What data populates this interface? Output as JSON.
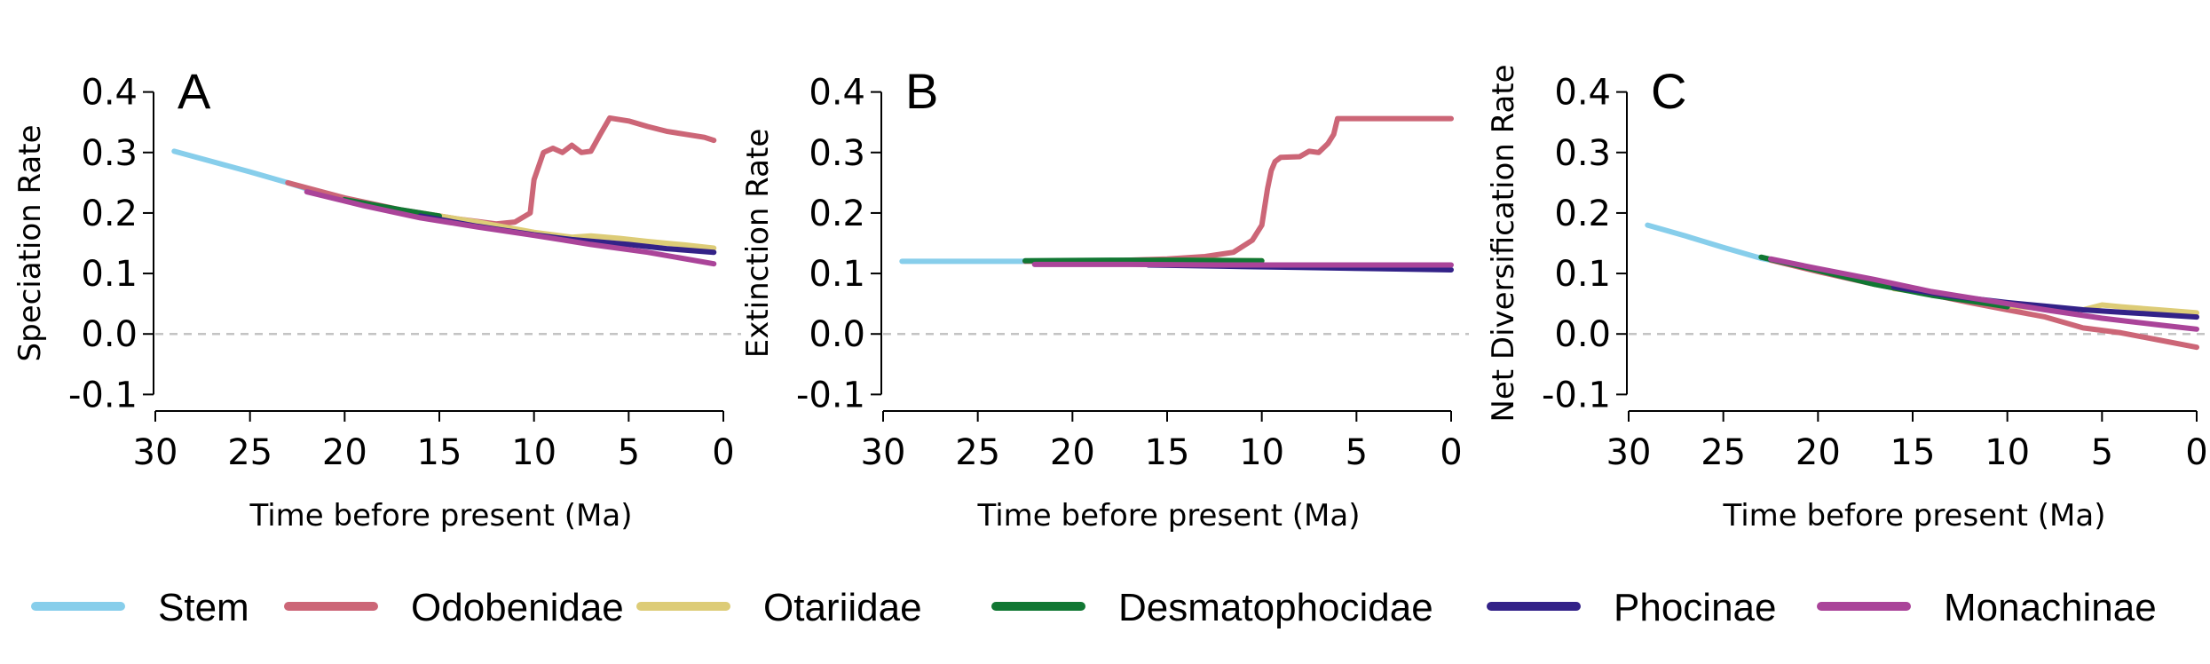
{
  "chart_data": [
    {
      "type": "line",
      "panel_label": "A",
      "ylabel": "Speciation Rate",
      "xlabel": "Time before present (Ma)",
      "xlim": [
        30,
        0
      ],
      "ylim": [
        -0.12,
        0.42
      ],
      "xticks": [
        30,
        25,
        20,
        15,
        10,
        5,
        0
      ],
      "yticks": [
        "0.4",
        "0.3",
        "0.2",
        "0.1",
        "0.0",
        "-0.1"
      ],
      "reference_line": 0,
      "series": [
        {
          "name": "Stem",
          "points": [
            [
              29,
              0.302
            ],
            [
              27,
              0.285
            ],
            [
              25,
              0.268
            ],
            [
              23,
              0.25
            ],
            [
              21.5,
              0.235
            ],
            [
              20,
              0.222
            ]
          ]
        },
        {
          "name": "Odobenidae",
          "points": [
            [
              23,
              0.25
            ],
            [
              20,
              0.225
            ],
            [
              17,
              0.205
            ],
            [
              14,
              0.19
            ],
            [
              12,
              0.182
            ],
            [
              11,
              0.185
            ],
            [
              10.2,
              0.2
            ],
            [
              10,
              0.255
            ],
            [
              9.5,
              0.3
            ],
            [
              9,
              0.307
            ],
            [
              8.5,
              0.3
            ],
            [
              8,
              0.312
            ],
            [
              7.5,
              0.3
            ],
            [
              7,
              0.302
            ],
            [
              6.5,
              0.33
            ],
            [
              6,
              0.357
            ],
            [
              5,
              0.352
            ],
            [
              4,
              0.343
            ],
            [
              3,
              0.335
            ],
            [
              2,
              0.33
            ],
            [
              1,
              0.325
            ],
            [
              0.5,
              0.32
            ]
          ]
        },
        {
          "name": "Otariidae",
          "points": [
            [
              16,
              0.2
            ],
            [
              13,
              0.185
            ],
            [
              10,
              0.168
            ],
            [
              8,
              0.16
            ],
            [
              7,
              0.162
            ],
            [
              5.5,
              0.158
            ],
            [
              4,
              0.153
            ],
            [
              2,
              0.147
            ],
            [
              0.5,
              0.142
            ]
          ]
        },
        {
          "name": "Desmatophocidae",
          "points": [
            [
              20,
              0.222
            ],
            [
              17,
              0.205
            ],
            [
              15,
              0.195
            ]
          ]
        },
        {
          "name": "Phocinae",
          "points": [
            [
              16,
              0.195
            ],
            [
              13,
              0.178
            ],
            [
              10,
              0.164
            ],
            [
              8,
              0.156
            ],
            [
              5,
              0.148
            ],
            [
              3,
              0.141
            ],
            [
              0.5,
              0.135
            ]
          ]
        },
        {
          "name": "Monachinae",
          "points": [
            [
              22,
              0.235
            ],
            [
              19,
              0.212
            ],
            [
              16,
              0.192
            ],
            [
              13,
              0.177
            ],
            [
              10,
              0.163
            ],
            [
              7,
              0.148
            ],
            [
              4,
              0.135
            ],
            [
              0.5,
              0.116
            ]
          ]
        }
      ]
    },
    {
      "type": "line",
      "panel_label": "B",
      "ylabel": "Extinction Rate",
      "xlabel": "Time before present (Ma)",
      "xlim": [
        30,
        0
      ],
      "ylim": [
        -0.12,
        0.42
      ],
      "xticks": [
        30,
        25,
        20,
        15,
        10,
        5,
        0
      ],
      "yticks": [
        "0.4",
        "0.3",
        "0.2",
        "0.1",
        "0.0",
        "-0.1"
      ],
      "reference_line": 0,
      "series": [
        {
          "name": "Stem",
          "points": [
            [
              29,
              0.12
            ],
            [
              25,
              0.12
            ],
            [
              22.5,
              0.12
            ]
          ]
        },
        {
          "name": "Odobenidae",
          "points": [
            [
              22.5,
              0.12
            ],
            [
              18,
              0.121
            ],
            [
              15,
              0.124
            ],
            [
              13,
              0.128
            ],
            [
              11.5,
              0.135
            ],
            [
              10.5,
              0.155
            ],
            [
              10,
              0.18
            ],
            [
              9.7,
              0.24
            ],
            [
              9.5,
              0.27
            ],
            [
              9.3,
              0.285
            ],
            [
              9,
              0.292
            ],
            [
              8,
              0.293
            ],
            [
              7.5,
              0.302
            ],
            [
              7,
              0.3
            ],
            [
              6.5,
              0.315
            ],
            [
              6.2,
              0.33
            ],
            [
              6,
              0.356
            ],
            [
              4,
              0.356
            ],
            [
              2,
              0.356
            ],
            [
              0,
              0.356
            ]
          ]
        },
        {
          "name": "Otariidae",
          "points": [
            [
              16,
              0.122
            ],
            [
              13,
              0.122
            ],
            [
              10,
              0.121
            ]
          ]
        },
        {
          "name": "Desmatophocidae",
          "points": [
            [
              22.5,
              0.121
            ],
            [
              18,
              0.122
            ],
            [
              14,
              0.122
            ],
            [
              10,
              0.121
            ]
          ]
        },
        {
          "name": "Phocinae",
          "points": [
            [
              16,
              0.114
            ],
            [
              12,
              0.112
            ],
            [
              8,
              0.11
            ],
            [
              4,
              0.108
            ],
            [
              0,
              0.106
            ]
          ]
        },
        {
          "name": "Monachinae",
          "points": [
            [
              22,
              0.115
            ],
            [
              17,
              0.115
            ],
            [
              12,
              0.114
            ],
            [
              8,
              0.114
            ],
            [
              4,
              0.114
            ],
            [
              0,
              0.114
            ]
          ]
        }
      ]
    },
    {
      "type": "line",
      "panel_label": "C",
      "ylabel": "Net Diversification Rate",
      "xlabel": "Time before present (Ma)",
      "xlim": [
        30,
        0
      ],
      "ylim": [
        -0.12,
        0.42
      ],
      "xticks": [
        30,
        25,
        20,
        15,
        10,
        5,
        0
      ],
      "yticks": [
        "0.4",
        "0.3",
        "0.2",
        "0.1",
        "0.0",
        "-0.1"
      ],
      "reference_line": 0,
      "series": [
        {
          "name": "Stem",
          "points": [
            [
              29,
              0.18
            ],
            [
              27,
              0.162
            ],
            [
              25,
              0.143
            ],
            [
              23,
              0.125
            ],
            [
              22.5,
              0.122
            ]
          ]
        },
        {
          "name": "Odobenidae",
          "points": [
            [
              22.5,
              0.122
            ],
            [
              20,
              0.103
            ],
            [
              17,
              0.082
            ],
            [
              14,
              0.065
            ],
            [
              12,
              0.052
            ],
            [
              10,
              0.04
            ],
            [
              8,
              0.028
            ],
            [
              6,
              0.01
            ],
            [
              4,
              0.002
            ],
            [
              2,
              -0.01
            ],
            [
              0,
              -0.022
            ]
          ]
        },
        {
          "name": "Otariidae",
          "points": [
            [
              16,
              0.075
            ],
            [
              13,
              0.062
            ],
            [
              10,
              0.047
            ],
            [
              8,
              0.042
            ],
            [
              6,
              0.04
            ],
            [
              5,
              0.048
            ],
            [
              4,
              0.045
            ],
            [
              2,
              0.04
            ],
            [
              0,
              0.035
            ]
          ]
        },
        {
          "name": "Desmatophocidae",
          "points": [
            [
              23,
              0.127
            ],
            [
              20,
              0.105
            ],
            [
              17,
              0.082
            ],
            [
              14,
              0.064
            ],
            [
              11,
              0.05
            ],
            [
              10,
              0.045
            ]
          ]
        },
        {
          "name": "Phocinae",
          "points": [
            [
              16,
              0.078
            ],
            [
              13,
              0.063
            ],
            [
              10,
              0.052
            ],
            [
              8,
              0.046
            ],
            [
              6,
              0.04
            ],
            [
              4,
              0.036
            ],
            [
              2,
              0.032
            ],
            [
              0,
              0.028
            ]
          ]
        },
        {
          "name": "Monachinae",
          "points": [
            [
              22.5,
              0.124
            ],
            [
              20,
              0.108
            ],
            [
              17,
              0.09
            ],
            [
              14,
              0.07
            ],
            [
              11,
              0.055
            ],
            [
              8,
              0.04
            ],
            [
              5,
              0.026
            ],
            [
              2,
              0.015
            ],
            [
              0,
              0.008
            ]
          ]
        }
      ]
    }
  ],
  "legend": [
    {
      "name": "Stem",
      "color": "#87ceeb"
    },
    {
      "name": "Odobenidae",
      "color": "#cc6677"
    },
    {
      "name": "Otariidae",
      "color": "#ddcc77"
    },
    {
      "name": "Desmatophocidae",
      "color": "#117733"
    },
    {
      "name": "Phocinae",
      "color": "#332288"
    },
    {
      "name": "Monachinae",
      "color": "#aa4499"
    }
  ]
}
